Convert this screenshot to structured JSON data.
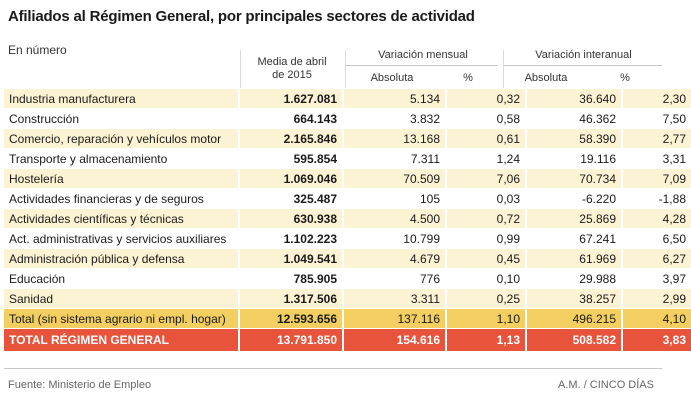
{
  "title": "Afiliados al Régimen General, por principales sectores de actividad",
  "subtitle": "En número",
  "headers": {
    "media": "Media de abril de 2015",
    "mensual": "Variación mensual",
    "interanual": "Variación interanual",
    "absoluta": "Absoluta",
    "pct": "%"
  },
  "rows": [
    {
      "sector": "Industria manufacturera",
      "media": "1.627.081",
      "m_abs": "5.134",
      "m_pct": "0,32",
      "i_abs": "36.640",
      "i_pct": "2,30"
    },
    {
      "sector": "Construcción",
      "media": "664.143",
      "m_abs": "3.832",
      "m_pct": "0,58",
      "i_abs": "46.362",
      "i_pct": "7,50"
    },
    {
      "sector": "Comercio, reparación y vehículos motor",
      "media": "2.165.846",
      "m_abs": "13.168",
      "m_pct": "0,61",
      "i_abs": "58.390",
      "i_pct": "2,77"
    },
    {
      "sector": "Transporte y almacenamiento",
      "media": "595.854",
      "m_abs": "7.311",
      "m_pct": "1,24",
      "i_abs": "19.116",
      "i_pct": "3,31"
    },
    {
      "sector": "Hostelería",
      "media": "1.069.046",
      "m_abs": "70.509",
      "m_pct": "7,06",
      "i_abs": "70.734",
      "i_pct": "7,09"
    },
    {
      "sector": "Actividades financieras y de seguros",
      "media": "325.487",
      "m_abs": "105",
      "m_pct": "0,03",
      "i_abs": "-6.220",
      "i_pct": "-1,88"
    },
    {
      "sector": "Actividades científicas y técnicas",
      "media": "630.938",
      "m_abs": "4.500",
      "m_pct": "0,72",
      "i_abs": "25.869",
      "i_pct": "4,28"
    },
    {
      "sector": "Act. administrativas y servicios auxiliares",
      "media": "1.102.223",
      "m_abs": "10.799",
      "m_pct": "0,99",
      "i_abs": "67.241",
      "i_pct": "6,50"
    },
    {
      "sector": "Administración pública y defensa",
      "media": "1.049.541",
      "m_abs": "4.679",
      "m_pct": "0,45",
      "i_abs": "61.969",
      "i_pct": "6,27"
    },
    {
      "sector": "Educación",
      "media": "785.905",
      "m_abs": "776",
      "m_pct": "0,10",
      "i_abs": "29.988",
      "i_pct": "3,97"
    },
    {
      "sector": "Sanidad",
      "media": "1.317.506",
      "m_abs": "3.311",
      "m_pct": "0,25",
      "i_abs": "38.257",
      "i_pct": "2,99"
    }
  ],
  "total": {
    "sector": "Total (sin sistema agrario ni empl. hogar)",
    "media": "12.593.656",
    "m_abs": "137.116",
    "m_pct": "1,10",
    "i_abs": "496.215",
    "i_pct": "4,10"
  },
  "grand_total": {
    "sector": "TOTAL RÉGIMEN GENERAL",
    "media": "13.791.850",
    "m_abs": "154.616",
    "m_pct": "1,13",
    "i_abs": "508.582",
    "i_pct": "3,83"
  },
  "footer": {
    "source": "Fuente: Ministerio de Empleo",
    "credit": "A.M. / CINCO DÍAS"
  },
  "colors": {
    "odd_row": "#fbf3d3",
    "total_row": "#f2cf60",
    "grand_row": "#e8533b"
  }
}
